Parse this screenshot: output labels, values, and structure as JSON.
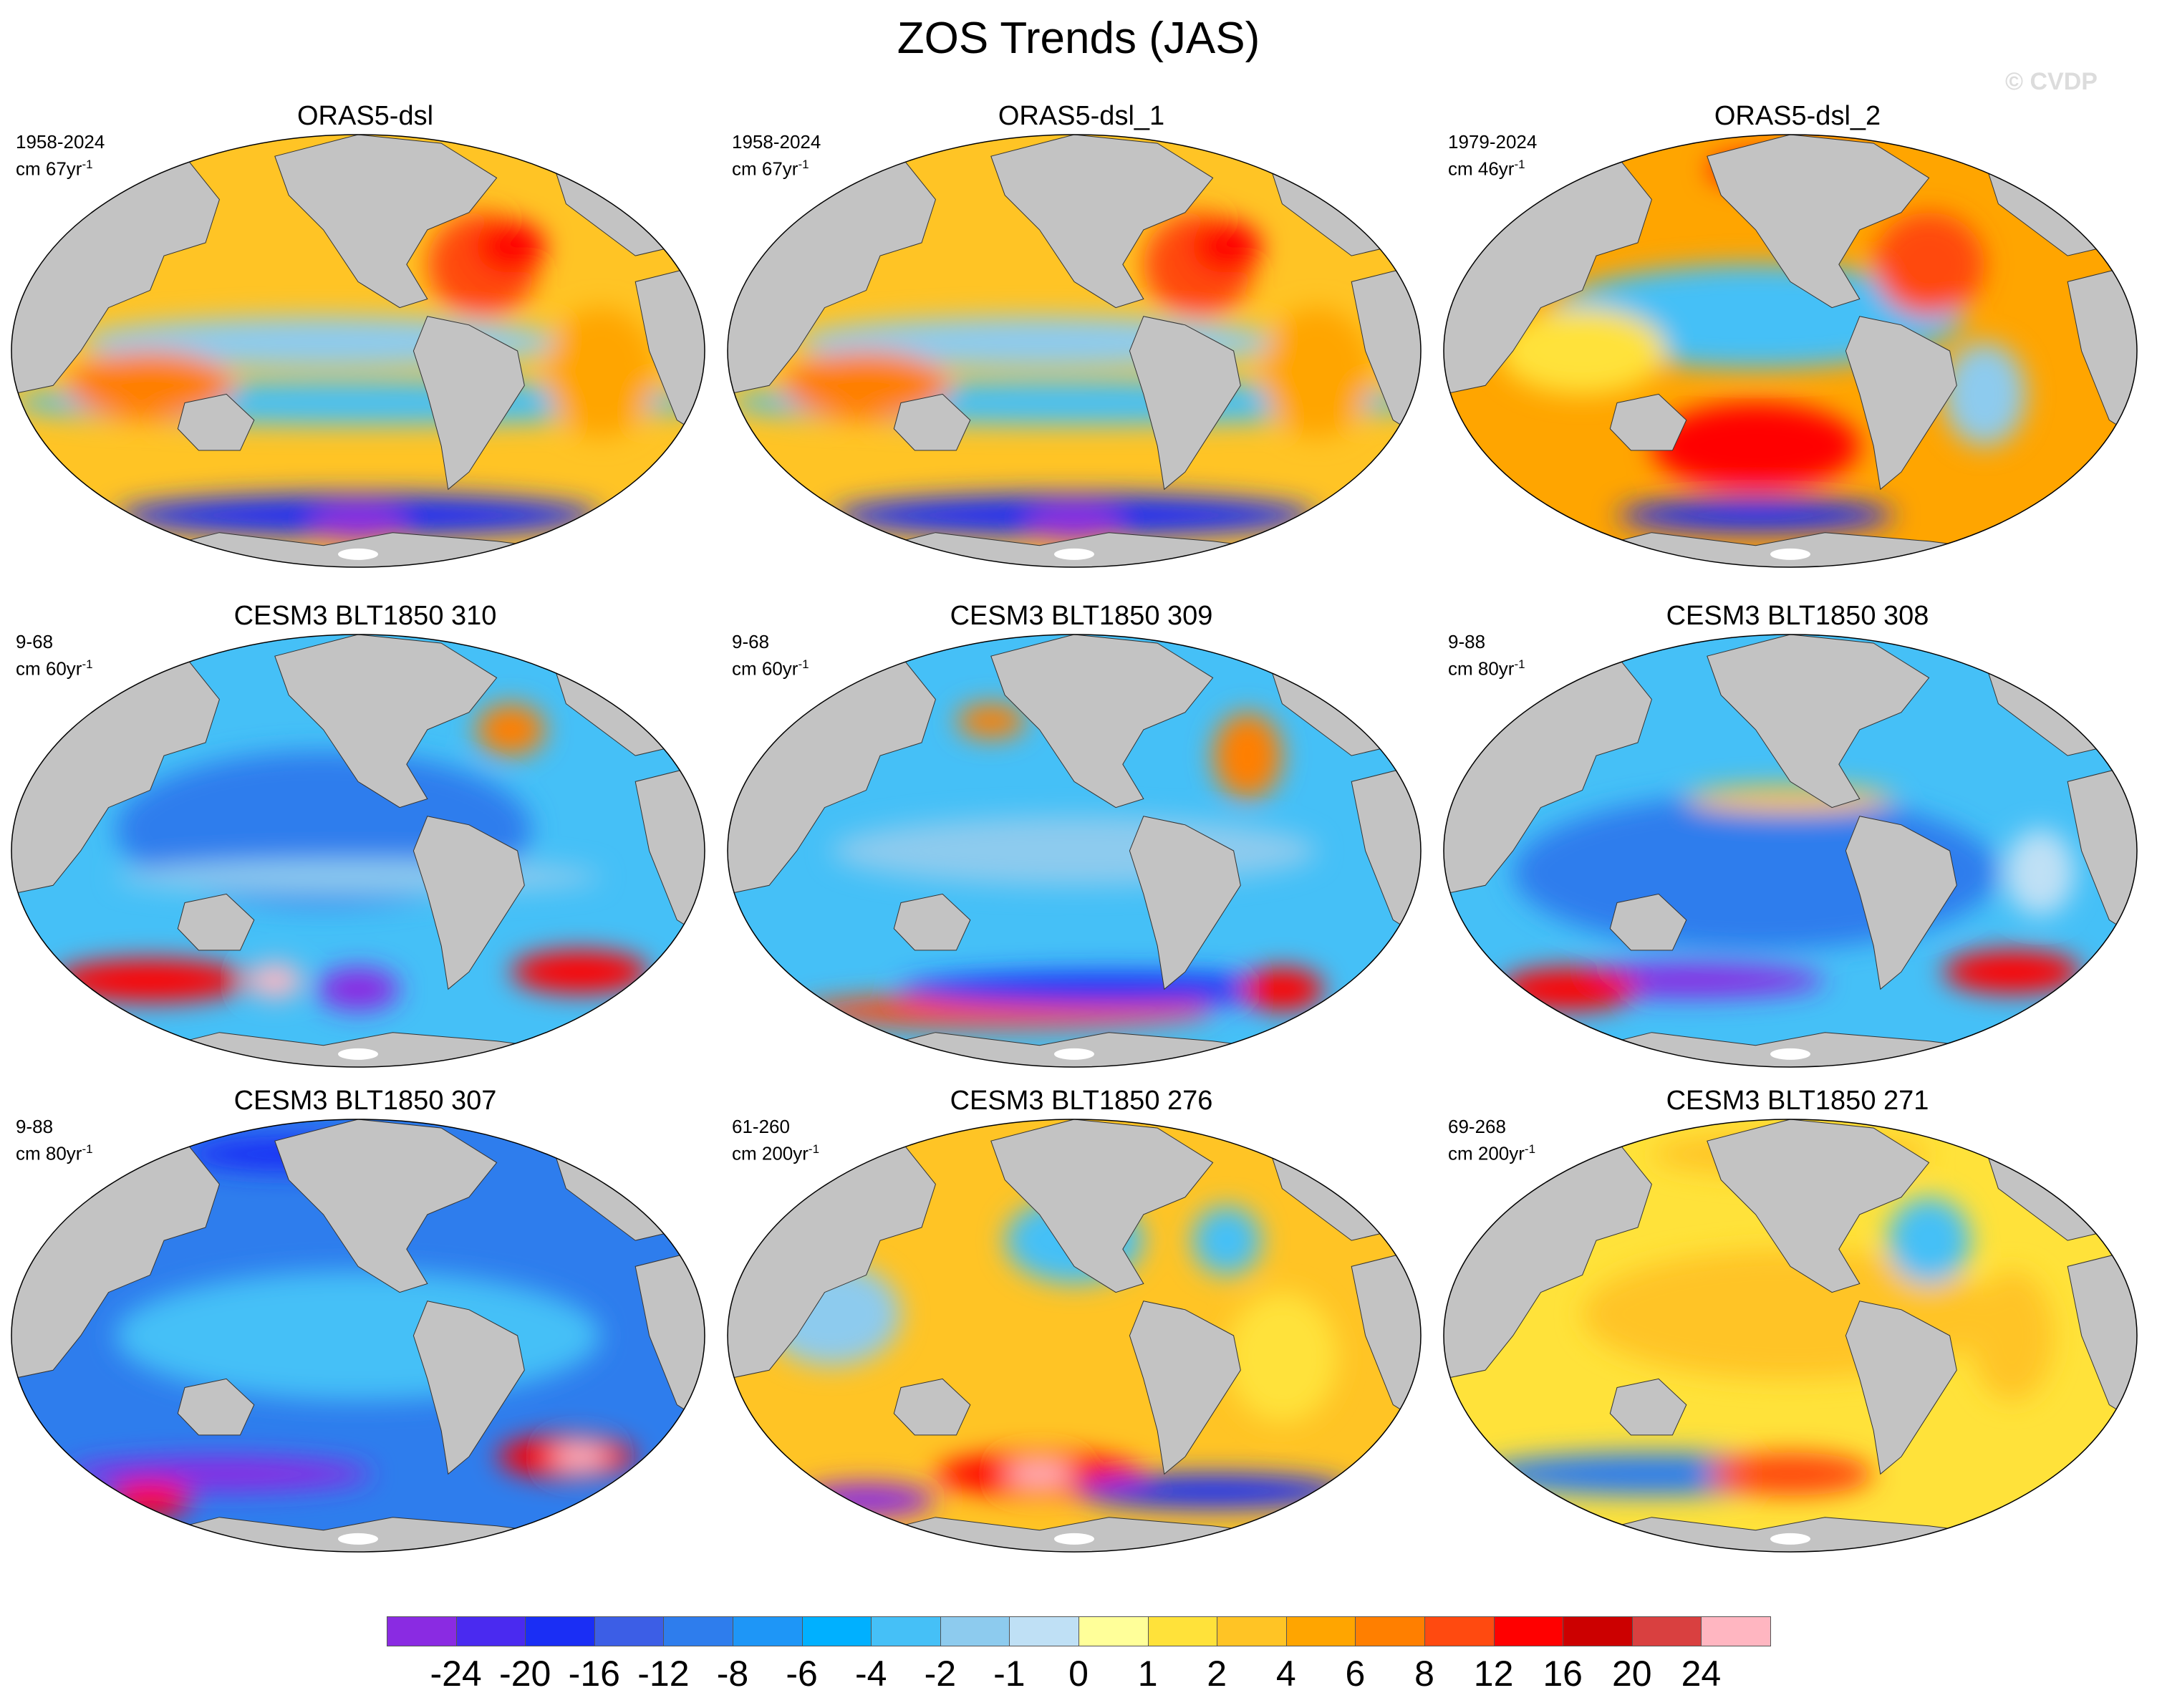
{
  "title": "ZOS Trends (JAS)",
  "watermark": "© CVDP",
  "colors": {
    "land": "#c3c3c3",
    "antarctic_ice": "#ffffff",
    "outline": "#333333"
  },
  "colorbar": {
    "colors": [
      "#8a2be2",
      "#4a2af0",
      "#1a2ef5",
      "#3c5ee6",
      "#2e7ded",
      "#1e96f7",
      "#00b0ff",
      "#45c0f7",
      "#8dcbee",
      "#bfe0f5",
      "#ffff99",
      "#ffe23a",
      "#ffc425",
      "#ffa500",
      "#ff7f00",
      "#ff4a10",
      "#ff0000",
      "#cc0000",
      "#d94040",
      "#ffb6c1"
    ],
    "labels": [
      "-24",
      "-20",
      "-16",
      "-12",
      "-8",
      "-6",
      "-4",
      "-2",
      "-1",
      "0",
      "1",
      "2",
      "4",
      "6",
      "8",
      "12",
      "16",
      "20",
      "24"
    ]
  },
  "panels": [
    {
      "title": "ORAS5-dsl",
      "period": "1958-2024",
      "unit": "cm 67yr",
      "unit_exp": "-1",
      "base": "#ffc425",
      "blobs": [
        [
          "#8dcbee",
          0.45,
          0.48,
          0.35,
          0.06
        ],
        [
          "#45c0f7",
          0.5,
          0.62,
          0.5,
          0.05
        ],
        [
          "#ff4a10",
          0.68,
          0.3,
          0.08,
          0.12
        ],
        [
          "#ff7f00",
          0.2,
          0.58,
          0.12,
          0.08
        ],
        [
          "#1a2ef5",
          0.5,
          0.88,
          0.35,
          0.05
        ],
        [
          "#8a2be2",
          0.5,
          0.9,
          0.07,
          0.04
        ],
        [
          "#ff0000",
          0.72,
          0.26,
          0.05,
          0.06
        ],
        [
          "#ffa500",
          0.85,
          0.55,
          0.08,
          0.15
        ]
      ]
    },
    {
      "title": "ORAS5-dsl_1",
      "period": "1958-2024",
      "unit": "cm 67yr",
      "unit_exp": "-1",
      "base": "#ffc425",
      "blobs": [
        [
          "#8dcbee",
          0.45,
          0.48,
          0.35,
          0.06
        ],
        [
          "#45c0f7",
          0.5,
          0.62,
          0.5,
          0.05
        ],
        [
          "#ff4a10",
          0.68,
          0.3,
          0.08,
          0.12
        ],
        [
          "#ff7f00",
          0.2,
          0.58,
          0.12,
          0.08
        ],
        [
          "#1a2ef5",
          0.5,
          0.88,
          0.35,
          0.05
        ],
        [
          "#8a2be2",
          0.5,
          0.9,
          0.07,
          0.04
        ],
        [
          "#ff0000",
          0.72,
          0.26,
          0.05,
          0.06
        ],
        [
          "#ffa500",
          0.85,
          0.55,
          0.08,
          0.15
        ]
      ]
    },
    {
      "title": "ORAS5-dsl_2",
      "period": "1979-2024",
      "unit": "cm 46yr",
      "unit_exp": "-1",
      "base": "#ffa500",
      "blobs": [
        [
          "#45c0f7",
          0.45,
          0.42,
          0.3,
          0.12
        ],
        [
          "#ff0000",
          0.45,
          0.72,
          0.15,
          0.1
        ],
        [
          "#ff4a10",
          0.7,
          0.3,
          0.08,
          0.12
        ],
        [
          "#ffe23a",
          0.2,
          0.5,
          0.12,
          0.1
        ],
        [
          "#1a2ef5",
          0.45,
          0.88,
          0.2,
          0.04
        ],
        [
          "#8dcbee",
          0.78,
          0.6,
          0.06,
          0.12
        ],
        [
          "#ff0000",
          0.5,
          0.08,
          0.12,
          0.04
        ]
      ]
    },
    {
      "title": "CESM3 BLT1850 310",
      "period": "9-68",
      "unit": "cm 60yr",
      "unit_exp": "-1",
      "base": "#45c0f7",
      "blobs": [
        [
          "#2e7ded",
          0.45,
          0.45,
          0.3,
          0.18
        ],
        [
          "#ff0000",
          0.2,
          0.8,
          0.14,
          0.05
        ],
        [
          "#8a2be2",
          0.5,
          0.82,
          0.06,
          0.05
        ],
        [
          "#ff0000",
          0.82,
          0.78,
          0.1,
          0.05
        ],
        [
          "#ffb6c1",
          0.38,
          0.8,
          0.04,
          0.04
        ],
        [
          "#ff7f00",
          0.72,
          0.22,
          0.05,
          0.06
        ],
        [
          "#8dcbee",
          0.5,
          0.56,
          0.35,
          0.04
        ]
      ]
    },
    {
      "title": "CESM3 BLT1850 309",
      "period": "9-68",
      "unit": "cm 60yr",
      "unit_exp": "-1",
      "base": "#45c0f7",
      "blobs": [
        [
          "#ff4a10",
          0.4,
          0.87,
          0.3,
          0.04
        ],
        [
          "#1a2ef5",
          0.55,
          0.82,
          0.3,
          0.04
        ],
        [
          "#ff7f00",
          0.75,
          0.28,
          0.05,
          0.1
        ],
        [
          "#ff7f00",
          0.38,
          0.2,
          0.05,
          0.04
        ],
        [
          "#8dcbee",
          0.5,
          0.5,
          0.35,
          0.08
        ],
        [
          "#ff0000",
          0.8,
          0.82,
          0.06,
          0.05
        ]
      ]
    },
    {
      "title": "CESM3 BLT1850 308",
      "period": "9-88",
      "unit": "cm 80yr",
      "unit_exp": "-1",
      "base": "#45c0f7",
      "blobs": [
        [
          "#2e7ded",
          0.45,
          0.55,
          0.35,
          0.18
        ],
        [
          "#8a2be2",
          0.35,
          0.8,
          0.2,
          0.04
        ],
        [
          "#ff0000",
          0.18,
          0.82,
          0.1,
          0.05
        ],
        [
          "#ff0000",
          0.82,
          0.78,
          0.1,
          0.05
        ],
        [
          "#bfe0f5",
          0.86,
          0.55,
          0.05,
          0.1
        ],
        [
          "#ffc425",
          0.5,
          0.38,
          0.15,
          0.03
        ]
      ]
    },
    {
      "title": "CESM3 BLT1850 307",
      "period": "9-88",
      "unit": "cm 80yr",
      "unit_exp": "-1",
      "base": "#2e7ded",
      "blobs": [
        [
          "#45c0f7",
          0.5,
          0.5,
          0.35,
          0.15
        ],
        [
          "#8a2be2",
          0.3,
          0.82,
          0.22,
          0.04
        ],
        [
          "#ff0000",
          0.2,
          0.88,
          0.06,
          0.04
        ],
        [
          "#ff0000",
          0.8,
          0.78,
          0.1,
          0.05
        ],
        [
          "#ffb6c1",
          0.82,
          0.78,
          0.04,
          0.03
        ],
        [
          "#1a2ef5",
          0.4,
          0.08,
          0.15,
          0.04
        ]
      ]
    },
    {
      "title": "CESM3 BLT1850 276",
      "period": "61-260",
      "unit": "cm 200yr",
      "unit_exp": "-1",
      "base": "#ffc425",
      "blobs": [
        [
          "#45c0f7",
          0.5,
          0.28,
          0.1,
          0.1
        ],
        [
          "#8dcbee",
          0.15,
          0.45,
          0.1,
          0.12
        ],
        [
          "#ff0000",
          0.45,
          0.82,
          0.15,
          0.05
        ],
        [
          "#ffb6c1",
          0.45,
          0.82,
          0.05,
          0.03
        ],
        [
          "#8a2be2",
          0.2,
          0.88,
          0.1,
          0.04
        ],
        [
          "#1a2ef5",
          0.7,
          0.86,
          0.2,
          0.04
        ],
        [
          "#45c0f7",
          0.72,
          0.28,
          0.05,
          0.08
        ],
        [
          "#ffe23a",
          0.8,
          0.55,
          0.08,
          0.15
        ]
      ]
    },
    {
      "title": "CESM3 BLT1850 271",
      "period": "69-268",
      "unit": "cm 200yr",
      "unit_exp": "-1",
      "base": "#ffe23a",
      "blobs": [
        [
          "#ffc425",
          0.5,
          0.45,
          0.3,
          0.15
        ],
        [
          "#2e7ded",
          0.3,
          0.82,
          0.25,
          0.05
        ],
        [
          "#ff4a10",
          0.5,
          0.82,
          0.12,
          0.05
        ],
        [
          "#45c0f7",
          0.7,
          0.28,
          0.06,
          0.1
        ],
        [
          "#ffc425",
          0.82,
          0.5,
          0.06,
          0.15
        ],
        [
          "#ffc425",
          0.5,
          0.08,
          0.2,
          0.05
        ]
      ]
    }
  ]
}
